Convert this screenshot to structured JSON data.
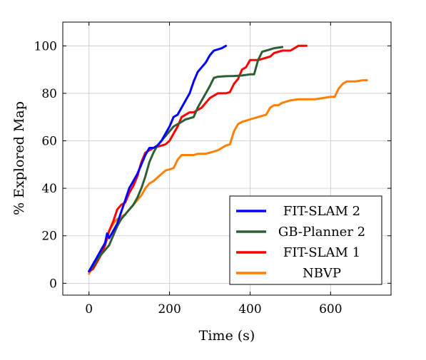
{
  "chart_data": {
    "type": "line",
    "xlabel": "Time (s)",
    "ylabel": "% Explored Map",
    "xlim": [
      -65,
      750
    ],
    "ylim": [
      -5,
      110
    ],
    "xticks": [
      0,
      200,
      400,
      600
    ],
    "yticks": [
      0,
      20,
      40,
      60,
      80,
      100
    ],
    "grid": true,
    "legend_position": "bottom-right",
    "series": [
      {
        "name": "FIT-SLAM 2",
        "color": "#0000ff",
        "x": [
          0,
          10,
          20,
          30,
          40,
          45,
          50,
          60,
          70,
          80,
          90,
          100,
          110,
          120,
          130,
          140,
          150,
          160,
          170,
          180,
          190,
          200,
          210,
          220,
          230,
          240,
          250,
          260,
          270,
          280,
          290,
          300,
          310,
          320,
          330,
          340
        ],
        "y": [
          5,
          8,
          11,
          14,
          17,
          21,
          19,
          22,
          25,
          30,
          35,
          40,
          43,
          46,
          50,
          54,
          57,
          57,
          58,
          60,
          63,
          66,
          70,
          71,
          74,
          77,
          80,
          85,
          89,
          91,
          93,
          96,
          98,
          98.5,
          99,
          100
        ]
      },
      {
        "name": "GB-Planner 2",
        "color": "#2e5e34",
        "x": [
          0,
          10,
          20,
          30,
          40,
          50,
          60,
          70,
          80,
          90,
          100,
          110,
          120,
          130,
          140,
          150,
          160,
          170,
          180,
          190,
          200,
          210,
          220,
          230,
          240,
          250,
          260,
          270,
          280,
          290,
          300,
          310,
          320,
          340,
          360,
          380,
          400,
          410,
          420,
          430,
          440,
          460,
          480
        ],
        "y": [
          5,
          7,
          10,
          12,
          14,
          16,
          20,
          24,
          27,
          29,
          31,
          33,
          36,
          40,
          45,
          51,
          55,
          58,
          60,
          62,
          64,
          66,
          67,
          68,
          69,
          69.5,
          70,
          74,
          77,
          80,
          83,
          86.5,
          87,
          87.2,
          87.3,
          87.5,
          88,
          88,
          94,
          97.5,
          98,
          99,
          99.5
        ]
      },
      {
        "name": "FIT-SLAM 1",
        "color": "#ff0000",
        "x": [
          0,
          10,
          20,
          30,
          40,
          50,
          60,
          70,
          80,
          90,
          100,
          110,
          120,
          130,
          140,
          150,
          160,
          170,
          180,
          190,
          200,
          210,
          220,
          230,
          240,
          250,
          260,
          270,
          280,
          290,
          300,
          310,
          320,
          340,
          350,
          360,
          370,
          380,
          390,
          400,
          420,
          440,
          450,
          460,
          480,
          500,
          520,
          530,
          540
        ],
        "y": [
          5,
          6,
          9,
          12,
          16,
          22,
          26,
          31,
          33,
          34,
          38,
          41,
          45,
          51,
          55,
          56,
          57,
          57.5,
          58,
          58.5,
          60,
          63,
          66,
          70,
          71,
          72,
          72,
          73,
          74,
          76,
          78,
          79,
          80,
          80,
          80.5,
          84,
          86,
          90,
          91,
          94,
          94,
          95,
          95.5,
          97,
          98,
          98,
          100,
          100,
          100
        ]
      },
      {
        "name": "NBVP",
        "color": "#ff8000",
        "x": [
          0,
          10,
          20,
          30,
          40,
          50,
          60,
          70,
          80,
          90,
          100,
          110,
          120,
          130,
          140,
          150,
          160,
          170,
          180,
          190,
          200,
          210,
          220,
          230,
          240,
          250,
          260,
          270,
          280,
          290,
          300,
          310,
          320,
          330,
          340,
          350,
          360,
          370,
          380,
          400,
          420,
          440,
          450,
          460,
          470,
          480,
          500,
          520,
          540,
          560,
          580,
          600,
          610,
          620,
          630,
          640,
          660,
          680,
          690
        ],
        "y": [
          4,
          7,
          9,
          13,
          17,
          22,
          25,
          27,
          28,
          29,
          31,
          33,
          35,
          37,
          40,
          42,
          43,
          44.5,
          46,
          47.5,
          48,
          48.5,
          52,
          54,
          54,
          54,
          54,
          54.5,
          54.5,
          54.5,
          55,
          55.5,
          56,
          57,
          58,
          58.5,
          64,
          67,
          68,
          69,
          70,
          71,
          74,
          75,
          75,
          76,
          77,
          77.5,
          77.5,
          77.5,
          78,
          78.5,
          78.5,
          82,
          84,
          85,
          85,
          85.5,
          85.5
        ]
      }
    ]
  }
}
